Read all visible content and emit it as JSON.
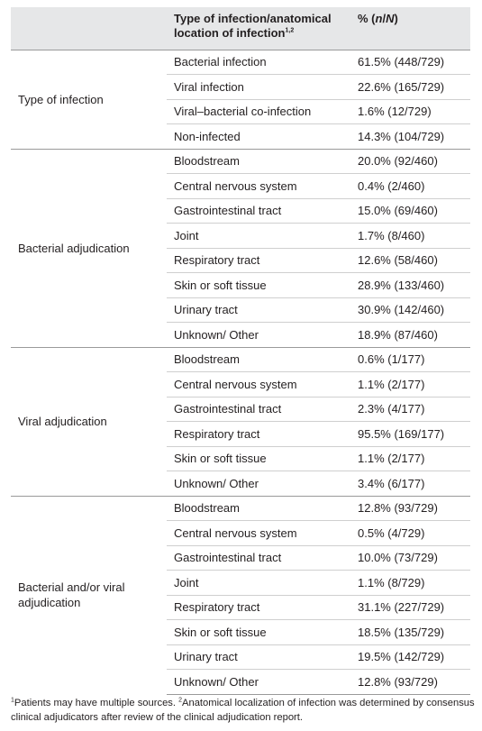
{
  "header": {
    "column_2": "Type of infection/anatomical location of infection",
    "column_2_note": "1,2",
    "column_3_parts": [
      "% (",
      "n",
      "/",
      "N",
      ")"
    ]
  },
  "groups": [
    {
      "label": "Type of infection",
      "rows": [
        [
          "Bacterial infection",
          "61.5% (448/729)"
        ],
        [
          "Viral infection",
          "22.6% (165/729)"
        ],
        [
          "Viral–bacterial co-infection",
          "1.6% (12/729)"
        ],
        [
          "Non-infected",
          "14.3% (104/729)"
        ]
      ]
    },
    {
      "label": "Bacterial adjudication",
      "rows": [
        [
          "Bloodstream",
          "20.0% (92/460)"
        ],
        [
          "Central nervous system",
          "0.4% (2/460)"
        ],
        [
          "Gastrointestinal tract",
          "15.0% (69/460)"
        ],
        [
          "Joint",
          "1.7% (8/460)"
        ],
        [
          "Respiratory tract",
          "12.6% (58/460)"
        ],
        [
          "Skin or soft tissue",
          "28.9% (133/460)"
        ],
        [
          "Urinary tract",
          "30.9% (142/460)"
        ],
        [
          "Unknown/ Other",
          "18.9% (87/460)"
        ]
      ]
    },
    {
      "label": "Viral adjudication",
      "rows": [
        [
          "Bloodstream",
          "0.6% (1/177)"
        ],
        [
          "Central nervous system",
          "1.1% (2/177)"
        ],
        [
          "Gastrointestinal tract",
          "2.3% (4/177)"
        ],
        [
          "Respiratory tract",
          "95.5% (169/177)"
        ],
        [
          "Skin or soft tissue",
          "1.1% (2/177)"
        ],
        [
          "Unknown/ Other",
          "3.4% (6/177)"
        ]
      ]
    },
    {
      "label": "Bacterial and/or viral adjudication",
      "rows": [
        [
          "Bloodstream",
          "12.8% (93/729)"
        ],
        [
          "Central nervous system",
          "0.5% (4/729)"
        ],
        [
          "Gastrointestinal tract",
          "10.0% (73/729)"
        ],
        [
          "Joint",
          "1.1% (8/729)"
        ],
        [
          "Respiratory tract",
          "31.1% (227/729)"
        ],
        [
          "Skin or soft tissue",
          "18.5% (135/729)"
        ],
        [
          "Urinary tract",
          "19.5% (142/729)"
        ],
        [
          "Unknown/ Other",
          "12.8% (93/729)"
        ]
      ]
    }
  ],
  "footnotes": [
    {
      "mark": "1",
      "text": "Patients may have multiple sources. "
    },
    {
      "mark": "2",
      "text": "Anatomical localization of infection was determined by consensus clinical adjudicators after review of the clinical adjudication report."
    }
  ]
}
